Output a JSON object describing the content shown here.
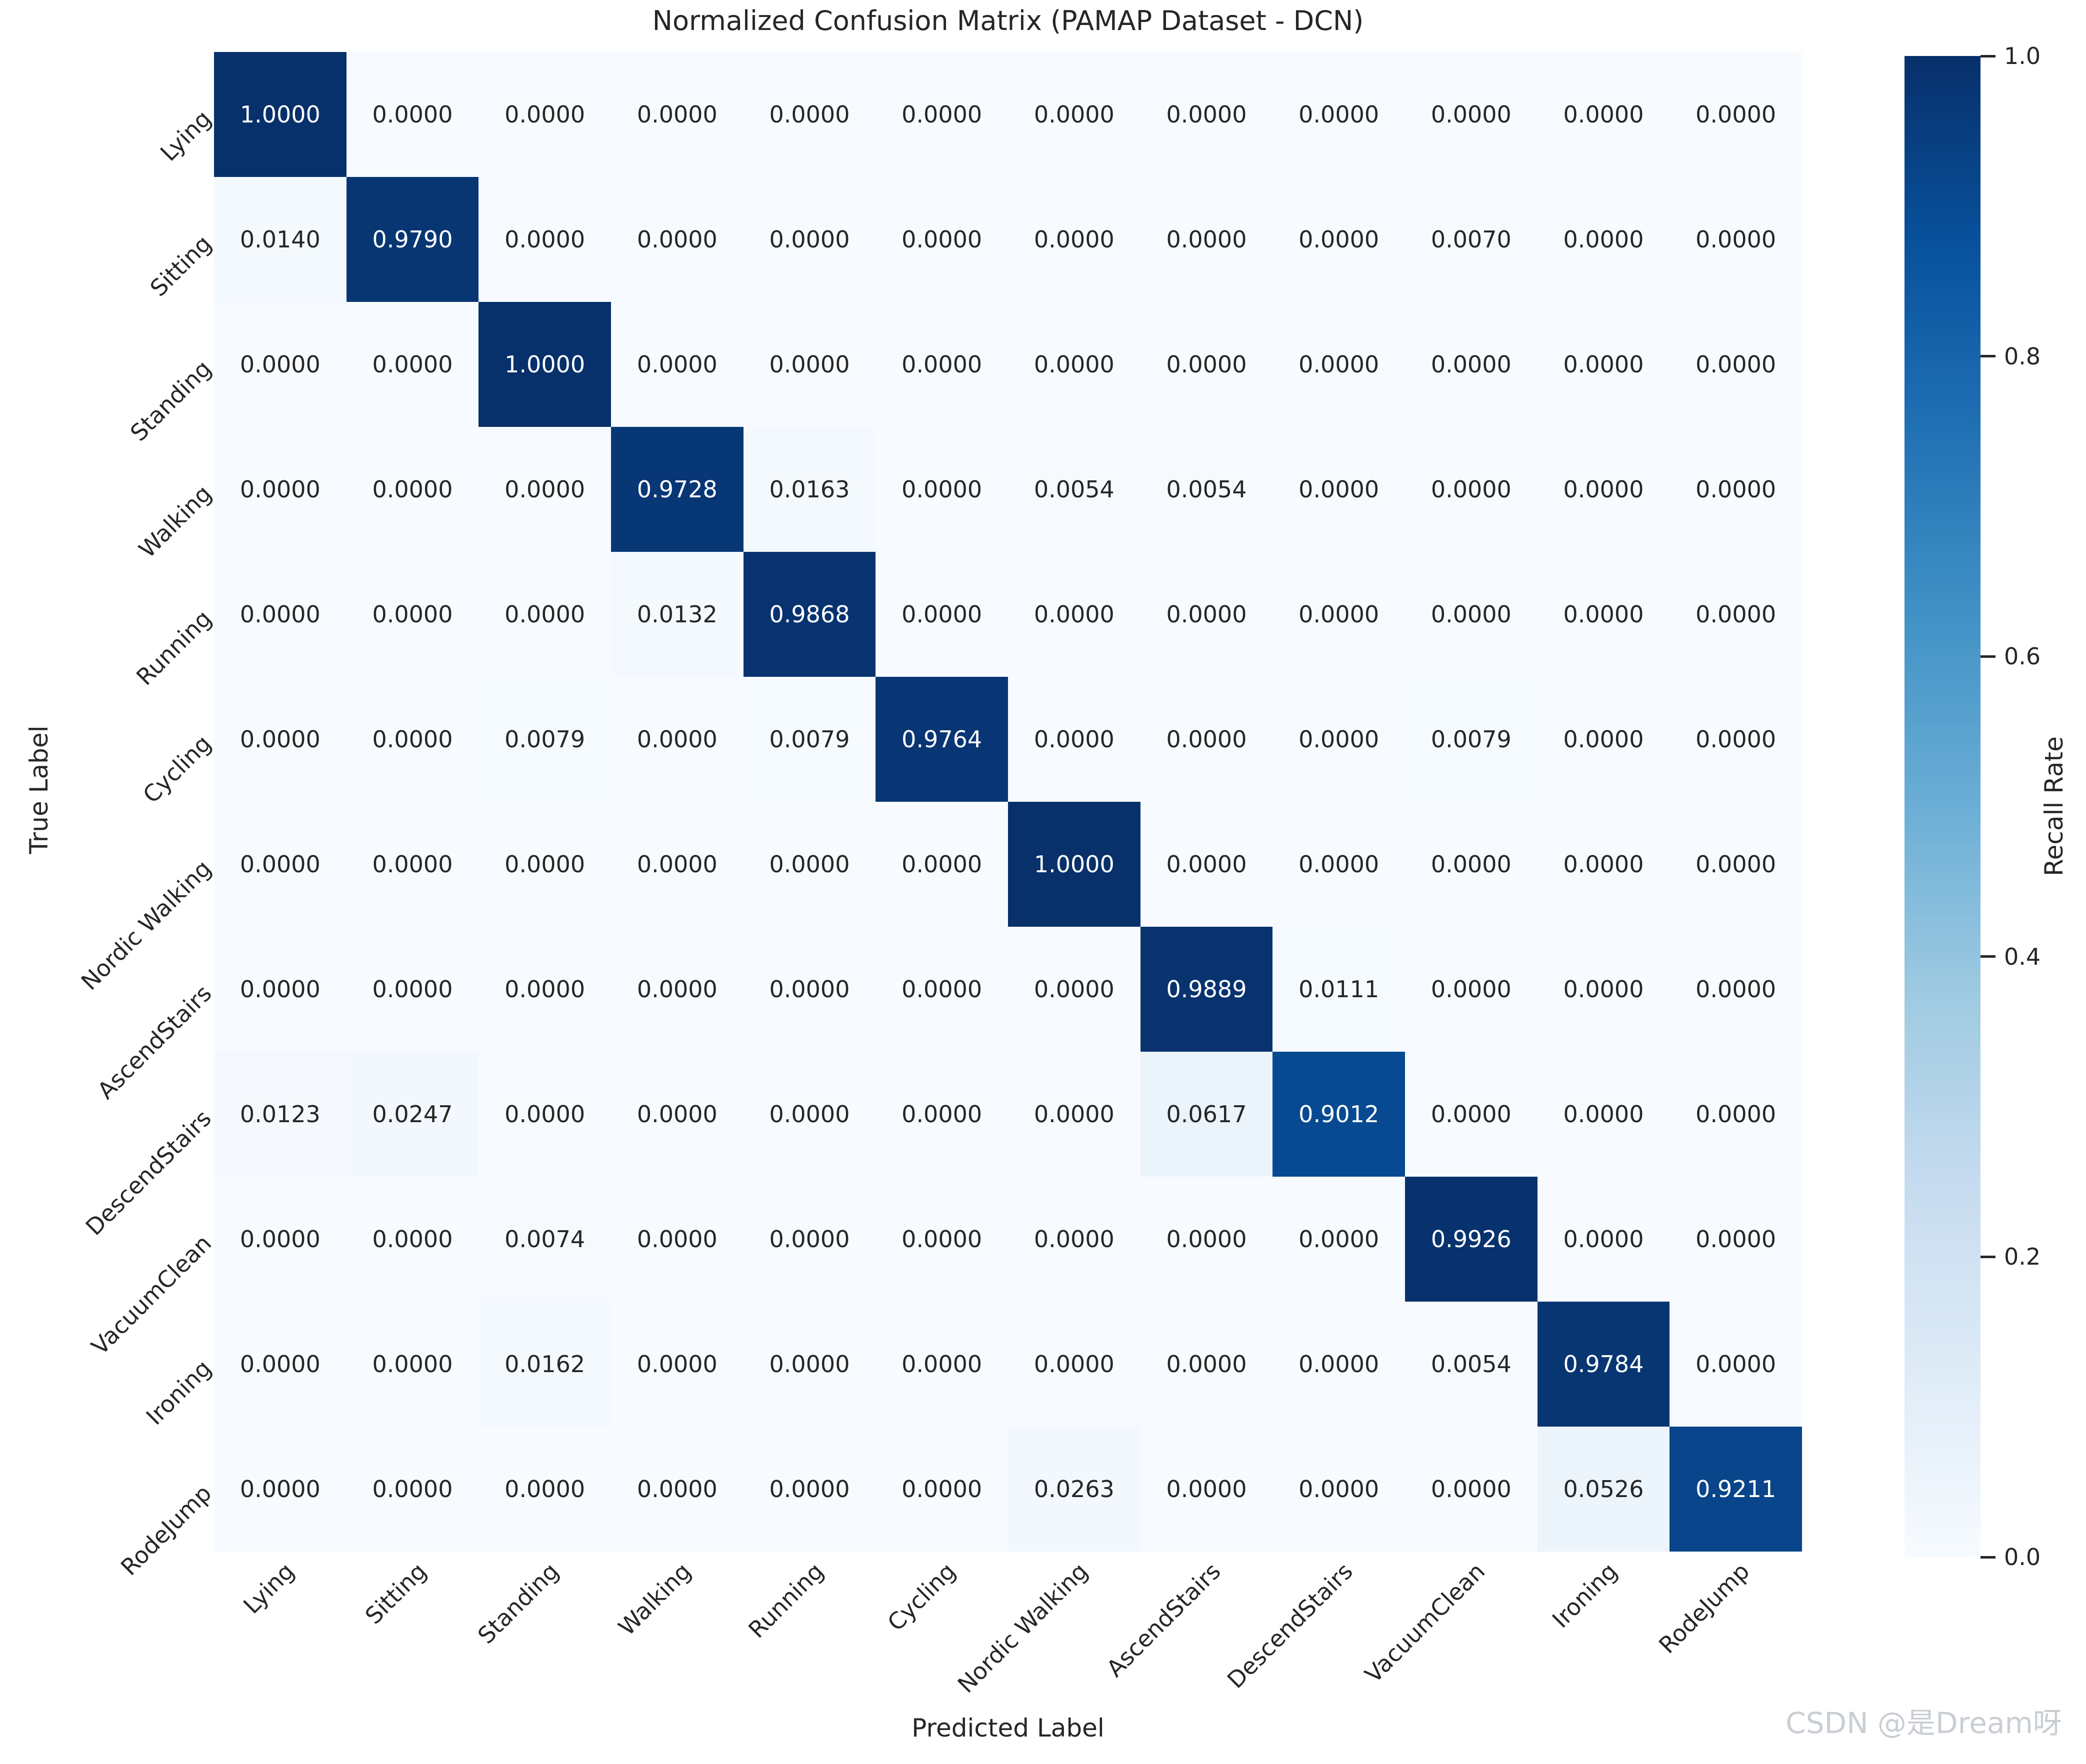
{
  "title": "Normalized Confusion Matrix (PAMAP Dataset - DCN)",
  "axes": {
    "x_label": "Predicted Label",
    "y_label": "True Label"
  },
  "watermark": "CSDN @是Dream呀",
  "chart_data": {
    "type": "heatmap",
    "title": "Normalized Confusion Matrix (PAMAP Dataset - DCN)",
    "xlabel": "Predicted Label",
    "ylabel": "True Label",
    "categories": [
      "Lying",
      "Sitting",
      "Standing",
      "Walking",
      "Running",
      "Cycling",
      "Nordic Walking",
      "AscendStairs",
      "DescendStairs",
      "VacuumClean",
      "Ironing",
      "RodeJump"
    ],
    "matrix": [
      [
        1.0,
        0.0,
        0.0,
        0.0,
        0.0,
        0.0,
        0.0,
        0.0,
        0.0,
        0.0,
        0.0,
        0.0
      ],
      [
        0.014,
        0.979,
        0.0,
        0.0,
        0.0,
        0.0,
        0.0,
        0.0,
        0.0,
        0.007,
        0.0,
        0.0
      ],
      [
        0.0,
        0.0,
        1.0,
        0.0,
        0.0,
        0.0,
        0.0,
        0.0,
        0.0,
        0.0,
        0.0,
        0.0
      ],
      [
        0.0,
        0.0,
        0.0,
        0.9728,
        0.0163,
        0.0,
        0.0054,
        0.0054,
        0.0,
        0.0,
        0.0,
        0.0
      ],
      [
        0.0,
        0.0,
        0.0,
        0.0132,
        0.9868,
        0.0,
        0.0,
        0.0,
        0.0,
        0.0,
        0.0,
        0.0
      ],
      [
        0.0,
        0.0,
        0.0079,
        0.0,
        0.0079,
        0.9764,
        0.0,
        0.0,
        0.0,
        0.0079,
        0.0,
        0.0
      ],
      [
        0.0,
        0.0,
        0.0,
        0.0,
        0.0,
        0.0,
        1.0,
        0.0,
        0.0,
        0.0,
        0.0,
        0.0
      ],
      [
        0.0,
        0.0,
        0.0,
        0.0,
        0.0,
        0.0,
        0.0,
        0.9889,
        0.0111,
        0.0,
        0.0,
        0.0
      ],
      [
        0.0123,
        0.0247,
        0.0,
        0.0,
        0.0,
        0.0,
        0.0,
        0.0617,
        0.9012,
        0.0,
        0.0,
        0.0
      ],
      [
        0.0,
        0.0,
        0.0074,
        0.0,
        0.0,
        0.0,
        0.0,
        0.0,
        0.0,
        0.9926,
        0.0,
        0.0
      ],
      [
        0.0,
        0.0,
        0.0162,
        0.0,
        0.0,
        0.0,
        0.0,
        0.0,
        0.0,
        0.0054,
        0.9784,
        0.0
      ],
      [
        0.0,
        0.0,
        0.0,
        0.0,
        0.0,
        0.0,
        0.0263,
        0.0,
        0.0,
        0.0,
        0.0526,
        0.9211
      ]
    ],
    "value_decimals": 4,
    "colormap": "Blues",
    "colormap_stops": [
      [
        0.0,
        "#f7fbff"
      ],
      [
        0.125,
        "#deebf7"
      ],
      [
        0.25,
        "#c6dbef"
      ],
      [
        0.375,
        "#9ecae1"
      ],
      [
        0.5,
        "#6baed6"
      ],
      [
        0.625,
        "#4292c6"
      ],
      [
        0.75,
        "#2171b5"
      ],
      [
        0.875,
        "#08519c"
      ],
      [
        1.0,
        "#08306b"
      ]
    ],
    "vmin": 0.0,
    "vmax": 1.0,
    "annotations": true,
    "annotation_dark_text_color": "#262626",
    "annotation_light_text_color": "#ffffff",
    "grid": false,
    "colorbar": {
      "label": "Recall Rate",
      "ticks": [
        1.0,
        0.8,
        0.6,
        0.4,
        0.2,
        0.0
      ],
      "range": [
        0.0,
        1.0
      ],
      "position": "right"
    }
  }
}
